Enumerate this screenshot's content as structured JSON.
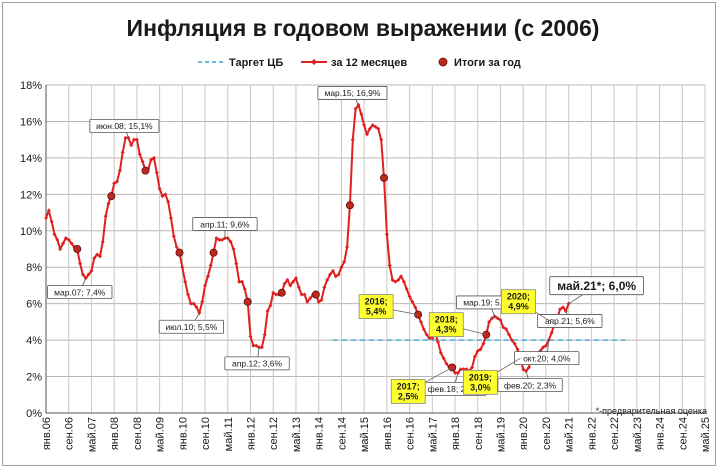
{
  "chart_data": {
    "type": "line",
    "title": "Инфляция в годовом выражении (с 2006)",
    "y_ticks": [
      "0%",
      "2%",
      "4%",
      "6%",
      "8%",
      "10%",
      "12%",
      "14%",
      "16%",
      "18%"
    ],
    "ylim": [
      0,
      18
    ],
    "x_ticks": [
      "янв.06",
      "сен.06",
      "май.07",
      "янв.08",
      "сен.08",
      "май.09",
      "янв.10",
      "сен.10",
      "май.11",
      "янв.12",
      "сен.12",
      "май.13",
      "янв.14",
      "сен.14",
      "май.15",
      "янв.16",
      "сен.16",
      "май.17",
      "янв.18",
      "сен.18",
      "май.19",
      "янв.20",
      "сен.20",
      "май.21",
      "янв.22",
      "сен.22",
      "май.23",
      "янв.24",
      "сен.24",
      "май.25"
    ],
    "xlim": [
      "2006-01",
      "2025-05"
    ],
    "grid": true,
    "legend": {
      "position": "top-center",
      "items": [
        {
          "label": "Таргет ЦБ",
          "style": "dashed",
          "color": "#3aa7d9"
        },
        {
          "label": "за 12 месяцев",
          "style": "line-markers",
          "color": "#e02020"
        },
        {
          "label": "Итоги за год",
          "style": "dot",
          "color": "#c0281e"
        }
      ]
    },
    "series": [
      {
        "name": "за 12 месяцев",
        "color": "#e02020",
        "x": [
          "2006-01",
          "2006-02",
          "2006-03",
          "2006-04",
          "2006-05",
          "2006-06",
          "2006-07",
          "2006-08",
          "2006-09",
          "2006-10",
          "2006-11",
          "2006-12",
          "2007-01",
          "2007-02",
          "2007-03",
          "2007-04",
          "2007-05",
          "2007-06",
          "2007-07",
          "2007-08",
          "2007-09",
          "2007-10",
          "2007-11",
          "2007-12",
          "2008-01",
          "2008-02",
          "2008-03",
          "2008-04",
          "2008-05",
          "2008-06",
          "2008-07",
          "2008-08",
          "2008-09",
          "2008-10",
          "2008-11",
          "2008-12",
          "2009-01",
          "2009-02",
          "2009-03",
          "2009-04",
          "2009-05",
          "2009-06",
          "2009-07",
          "2009-08",
          "2009-09",
          "2009-10",
          "2009-11",
          "2009-12",
          "2010-01",
          "2010-02",
          "2010-03",
          "2010-04",
          "2010-05",
          "2010-06",
          "2010-07",
          "2010-08",
          "2010-09",
          "2010-10",
          "2010-11",
          "2010-12",
          "2011-01",
          "2011-02",
          "2011-03",
          "2011-04",
          "2011-05",
          "2011-06",
          "2011-07",
          "2011-08",
          "2011-09",
          "2011-10",
          "2011-11",
          "2011-12",
          "2012-01",
          "2012-02",
          "2012-03",
          "2012-04",
          "2012-05",
          "2012-06",
          "2012-07",
          "2012-08",
          "2012-09",
          "2012-10",
          "2012-11",
          "2012-12",
          "2013-01",
          "2013-02",
          "2013-03",
          "2013-04",
          "2013-05",
          "2013-06",
          "2013-07",
          "2013-08",
          "2013-09",
          "2013-10",
          "2013-11",
          "2013-12",
          "2014-01",
          "2014-02",
          "2014-03",
          "2014-04",
          "2014-05",
          "2014-06",
          "2014-07",
          "2014-08",
          "2014-09",
          "2014-10",
          "2014-11",
          "2014-12",
          "2015-01",
          "2015-02",
          "2015-03",
          "2015-04",
          "2015-05",
          "2015-06",
          "2015-07",
          "2015-08",
          "2015-09",
          "2015-10",
          "2015-11",
          "2015-12",
          "2016-01",
          "2016-02",
          "2016-03",
          "2016-04",
          "2016-05",
          "2016-06",
          "2016-07",
          "2016-08",
          "2016-09",
          "2016-10",
          "2016-11",
          "2016-12",
          "2017-01",
          "2017-02",
          "2017-03",
          "2017-04",
          "2017-05",
          "2017-06",
          "2017-07",
          "2017-08",
          "2017-09",
          "2017-10",
          "2017-11",
          "2017-12",
          "2018-01",
          "2018-02",
          "2018-03",
          "2018-04",
          "2018-05",
          "2018-06",
          "2018-07",
          "2018-08",
          "2018-09",
          "2018-10",
          "2018-11",
          "2018-12",
          "2019-01",
          "2019-02",
          "2019-03",
          "2019-04",
          "2019-05",
          "2019-06",
          "2019-07",
          "2019-08",
          "2019-09",
          "2019-10",
          "2019-11",
          "2019-12",
          "2020-01",
          "2020-02",
          "2020-03",
          "2020-04",
          "2020-05",
          "2020-06",
          "2020-07",
          "2020-08",
          "2020-09",
          "2020-10",
          "2020-11",
          "2020-12",
          "2021-01",
          "2021-02",
          "2021-03",
          "2021-04",
          "2021-05"
        ],
        "values": [
          10.7,
          11.1,
          10.5,
          9.8,
          9.5,
          9.0,
          9.3,
          9.6,
          9.5,
          9.3,
          9.1,
          9.0,
          8.2,
          7.6,
          7.4,
          7.6,
          7.8,
          8.5,
          8.7,
          8.6,
          9.4,
          10.8,
          11.5,
          11.9,
          12.6,
          12.7,
          13.3,
          14.3,
          15.1,
          15.1,
          14.7,
          15.0,
          15.0,
          14.2,
          13.8,
          13.3,
          13.4,
          13.9,
          14.0,
          13.2,
          12.3,
          11.9,
          12.0,
          11.6,
          10.7,
          9.7,
          9.1,
          8.8,
          8.0,
          7.2,
          6.5,
          6.0,
          6.0,
          5.8,
          5.5,
          6.1,
          7.0,
          7.5,
          8.1,
          8.8,
          9.6,
          9.5,
          9.5,
          9.6,
          9.6,
          9.4,
          9.0,
          8.2,
          7.2,
          7.2,
          6.8,
          6.1,
          4.2,
          3.7,
          3.7,
          3.6,
          3.6,
          4.3,
          5.6,
          5.9,
          6.6,
          6.5,
          6.5,
          6.6,
          7.1,
          7.3,
          7.0,
          7.2,
          7.4,
          6.9,
          6.5,
          6.5,
          6.1,
          6.3,
          6.5,
          6.5,
          6.1,
          6.2,
          6.9,
          7.3,
          7.6,
          7.8,
          7.5,
          7.6,
          8.0,
          8.3,
          9.1,
          11.4,
          15.0,
          16.7,
          16.9,
          16.4,
          15.8,
          15.3,
          15.6,
          15.8,
          15.7,
          15.6,
          15.0,
          12.9,
          9.8,
          8.1,
          7.3,
          7.2,
          7.3,
          7.5,
          7.2,
          6.8,
          6.4,
          6.1,
          5.8,
          5.4,
          5.0,
          4.6,
          4.3,
          4.1,
          4.1,
          4.4,
          3.9,
          3.3,
          3.0,
          2.7,
          2.5,
          2.5,
          2.2,
          2.2,
          2.4,
          2.4,
          2.4,
          2.3,
          2.5,
          3.1,
          3.4,
          3.5,
          3.8,
          4.3,
          5.0,
          5.2,
          5.3,
          5.2,
          5.1,
          4.7,
          4.6,
          4.3,
          4.0,
          3.8,
          3.5,
          3.0,
          2.4,
          2.3,
          2.5,
          3.1,
          3.0,
          3.2,
          3.4,
          3.6,
          3.7,
          4.0,
          4.4,
          4.9,
          5.2,
          5.7,
          5.8,
          5.6,
          6.0
        ]
      },
      {
        "name": "Итоги за год",
        "color": "#c0281e",
        "x": [
          "2006-12",
          "2007-12",
          "2008-12",
          "2009-12",
          "2010-12",
          "2011-12",
          "2012-12",
          "2013-12",
          "2014-12",
          "2015-12",
          "2016-12",
          "2017-12",
          "2018-12",
          "2019-12",
          "2020-12"
        ],
        "values": [
          9.0,
          11.9,
          13.3,
          8.8,
          8.8,
          6.1,
          6.6,
          6.5,
          11.4,
          12.9,
          5.4,
          2.5,
          4.3,
          3.0,
          4.9
        ]
      },
      {
        "name": "Таргет ЦБ",
        "color": "#3aa7d9",
        "x": [
          "2014-06",
          "2023-01"
        ],
        "values": [
          4.0,
          4.0
        ]
      }
    ],
    "annotations": [
      {
        "text": "июн.08; 15,1%",
        "x": "2008-06",
        "y": 15.1,
        "style": "white"
      },
      {
        "text": "мар.07; 7,4%",
        "x": "2007-03",
        "y": 7.4,
        "style": "white"
      },
      {
        "text": "апр.11; 9,6%",
        "x": "2011-04",
        "y": 9.6,
        "style": "white"
      },
      {
        "text": "июл.10; 5,5%",
        "x": "2010-07",
        "y": 5.5,
        "style": "white"
      },
      {
        "text": "апр.12; 3,6%",
        "x": "2012-04",
        "y": 3.6,
        "style": "white"
      },
      {
        "text": "мар.15; 16,9%",
        "x": "2015-03",
        "y": 16.9,
        "style": "white"
      },
      {
        "text": "фев.18; 2,2%",
        "x": "2018-02",
        "y": 2.2,
        "style": "white"
      },
      {
        "text": "мар.19; 5,3%",
        "x": "2019-03",
        "y": 5.3,
        "style": "white"
      },
      {
        "text": "фев.20; 2,3%",
        "x": "2020-02",
        "y": 2.3,
        "style": "white"
      },
      {
        "text": "окт.20; 4,0%",
        "x": "2020-10",
        "y": 4.0,
        "style": "white"
      },
      {
        "text": "апр.21; 5,6%",
        "x": "2021-04",
        "y": 5.6,
        "style": "white"
      },
      {
        "text": "май.21*; 6,0%",
        "x": "2021-05",
        "y": 6.0,
        "style": "big"
      },
      {
        "lines": [
          "2016;",
          "5,4%"
        ],
        "x": "2016-12",
        "y": 5.4,
        "style": "yellow"
      },
      {
        "lines": [
          "2017;",
          "2,5%"
        ],
        "x": "2017-12",
        "y": 2.5,
        "style": "yellow"
      },
      {
        "lines": [
          "2018;",
          "4,3%"
        ],
        "x": "2018-12",
        "y": 4.3,
        "style": "yellow"
      },
      {
        "lines": [
          "2019;",
          "3,0%"
        ],
        "x": "2019-12",
        "y": 3.0,
        "style": "yellow"
      },
      {
        "lines": [
          "2020;",
          "4,9%"
        ],
        "x": "2020-12",
        "y": 4.9,
        "style": "yellow"
      }
    ],
    "footnote": "*-предварительная оценка"
  }
}
